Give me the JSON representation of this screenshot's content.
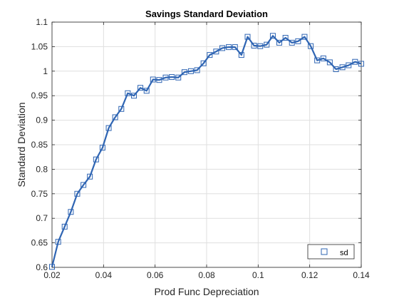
{
  "chart_data": {
    "type": "line",
    "title": "Savings Standard Deviation",
    "xlabel": "Prod Func Depreciation",
    "ylabel": "Standard Deviation",
    "xlim": [
      0.02,
      0.14
    ],
    "ylim": [
      0.6,
      1.1
    ],
    "xticks": [
      0.02,
      0.04,
      0.06,
      0.08,
      0.1,
      0.12,
      0.14
    ],
    "xtick_labels": [
      "0.02",
      "0.04",
      "0.06",
      "0.08",
      "0.1",
      "0.12",
      "0.14"
    ],
    "yticks": [
      0.6,
      0.65,
      0.7,
      0.75,
      0.8,
      0.85,
      0.9,
      0.95,
      1.0,
      1.05,
      1.1
    ],
    "ytick_labels": [
      "0.6",
      "0.65",
      "0.7",
      "0.75",
      "0.8",
      "0.85",
      "0.9",
      "0.95",
      "1",
      "1.05",
      "1.1"
    ],
    "grid": true,
    "legend_position": "bottom-right",
    "line_color": "#2f65b3",
    "marker": "square",
    "series": [
      {
        "name": "sd",
        "x": [
          0.02,
          0.0224,
          0.0249,
          0.0273,
          0.0298,
          0.0322,
          0.0347,
          0.0371,
          0.0396,
          0.042,
          0.0445,
          0.0469,
          0.0494,
          0.0518,
          0.0543,
          0.0567,
          0.0592,
          0.0616,
          0.0641,
          0.0665,
          0.069,
          0.0714,
          0.0739,
          0.0763,
          0.0788,
          0.0812,
          0.0837,
          0.0861,
          0.0886,
          0.091,
          0.0935,
          0.0959,
          0.0984,
          0.1008,
          0.1033,
          0.1057,
          0.1082,
          0.1106,
          0.1131,
          0.1155,
          0.118,
          0.1204,
          0.1229,
          0.1253,
          0.1278,
          0.1302,
          0.1327,
          0.1351,
          0.1376,
          0.14
        ],
        "values": [
          0.601,
          0.652,
          0.683,
          0.713,
          0.75,
          0.768,
          0.785,
          0.82,
          0.844,
          0.884,
          0.906,
          0.923,
          0.955,
          0.95,
          0.966,
          0.96,
          0.983,
          0.982,
          0.987,
          0.988,
          0.987,
          0.998,
          1.0,
          1.002,
          1.016,
          1.033,
          1.04,
          1.047,
          1.049,
          1.049,
          1.033,
          1.07,
          1.052,
          1.051,
          1.054,
          1.072,
          1.058,
          1.068,
          1.058,
          1.061,
          1.07,
          1.051,
          1.022,
          1.026,
          1.018,
          1.004,
          1.008,
          1.012,
          1.019,
          1.015
        ]
      }
    ]
  }
}
